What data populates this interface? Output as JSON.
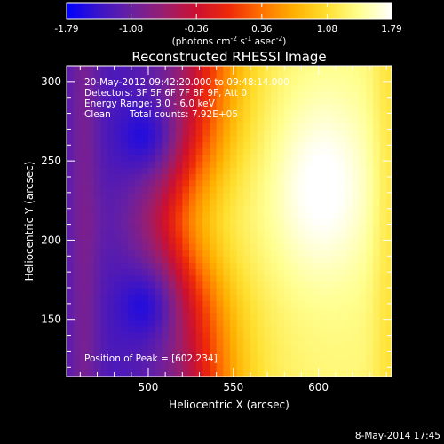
{
  "chart_data": {
    "type": "heatmap",
    "title": "Reconstructed RHESSI Image",
    "xlabel": "Heliocentric X (arcsec)",
    "ylabel": "Heliocentric Y (arcsec)",
    "xlim": [
      452,
      643
    ],
    "ylim": [
      114,
      310
    ],
    "x_ticks": [
      500,
      550,
      600
    ],
    "y_ticks": [
      150,
      200,
      250,
      300
    ],
    "colorbar": {
      "range": [
        -1.79,
        1.79
      ],
      "ticks": [
        "-1.79",
        "-1.08",
        "-0.36",
        "0.36",
        "1.08",
        "1.79"
      ],
      "unit_base": "(photons cm",
      "unit_exp1": "-2",
      "unit_mid": " s",
      "unit_exp2": "-1",
      "unit_mid2": " asec",
      "unit_exp3": "-2",
      "unit_end": ")",
      "colormap": [
        "#0000ff",
        "#3a14c8",
        "#6a20a0",
        "#9a1e6e",
        "#cc1030",
        "#ee2a08",
        "#ff7200",
        "#ffb000",
        "#ffe030",
        "#ffff90",
        "#ffffff"
      ]
    },
    "annotations": {
      "time_range": "20-May-2012 09:42:20.000 to 09:48:14.000",
      "detectors": "Detectors: 3F 5F 6F 7F 8F 9F, Att 0",
      "energy": "Energy Range: 3.0 - 6.0 keV",
      "algorithm": "Clean",
      "counts": "Total counts: 7.92E+05",
      "peak": "Position of Peak = [602,234]"
    },
    "peak": [
      602,
      234
    ],
    "image_range": [
      -1.79,
      1.79
    ]
  },
  "footer": {
    "date": "8-May-2014 17:45"
  }
}
